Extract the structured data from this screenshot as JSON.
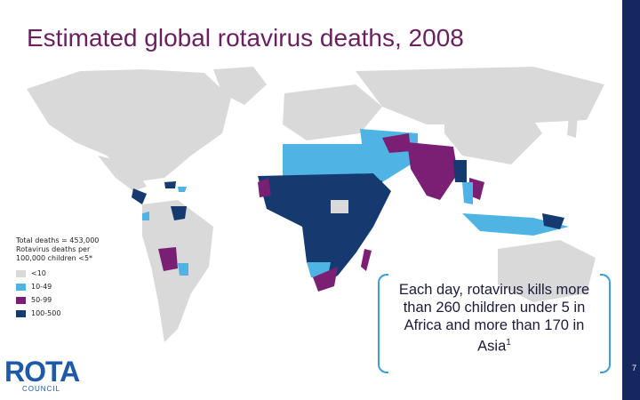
{
  "title": "Estimated global rotavirus deaths, 2008",
  "legend": {
    "total_deaths": "Total deaths = 453,000",
    "rate_label": "Rotavirus deaths per\n100,000 children <5*",
    "items": [
      {
        "label": "<10",
        "color": "#d9d9d9"
      },
      {
        "label": "10-49",
        "color": "#4fb3e3"
      },
      {
        "label": "50-99",
        "color": "#7a1f73"
      },
      {
        "label": "100-500",
        "color": "#143a70"
      }
    ]
  },
  "callout": {
    "text": "Each day, rotavirus kills more than 260 children under 5 in Africa and more than 170 in Asia",
    "superscript": "1"
  },
  "logo": {
    "ro": "RO",
    "ta": "TA",
    "council": "COUNCIL"
  },
  "page_number": "7",
  "colors": {
    "title": "#6b1f5e",
    "accent_bar": "#14275f",
    "callout_border": "#3a9fd8"
  }
}
